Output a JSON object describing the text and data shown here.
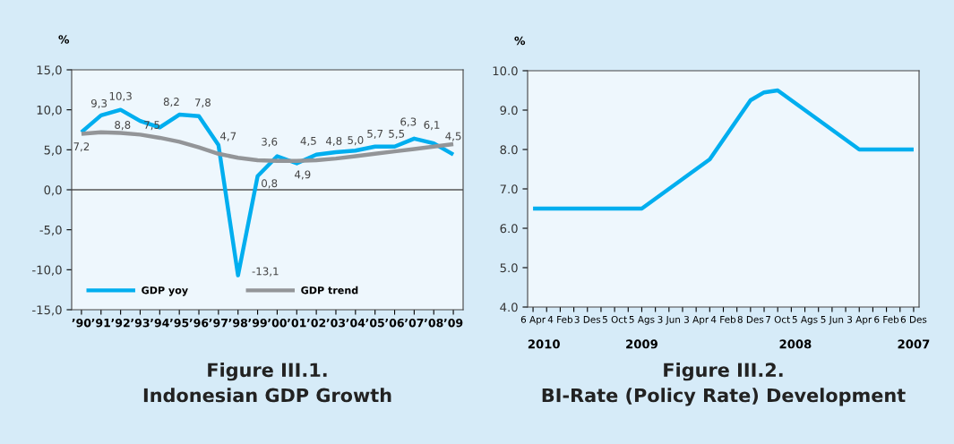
{
  "chart_data": [
    {
      "type": "line",
      "title": "Figure III.1.\nIndonesian GDP Growth",
      "ylabel": "%",
      "categories": [
        "’90",
        "’91",
        "’92",
        "’93",
        "’94",
        "’95",
        "’96",
        "’97",
        "’98",
        "’99",
        "’00",
        "’01",
        "’02",
        "’03",
        "’04",
        "’05",
        "’06",
        "’07",
        "’08",
        "’09"
      ],
      "series": [
        {
          "name": "GDP yoy",
          "color": "#00aeef",
          "values": [
            7.2,
            9.3,
            10.0,
            8.6,
            7.8,
            9.4,
            9.2,
            5.6,
            -10.7,
            1.7,
            4.2,
            3.3,
            4.4,
            4.7,
            4.9,
            5.4,
            5.4,
            6.4,
            5.8,
            4.4
          ]
        },
        {
          "name": "GDP trend",
          "color": "#939598",
          "values": [
            7.0,
            7.2,
            7.1,
            6.9,
            6.5,
            6.0,
            5.3,
            4.5,
            4.0,
            3.7,
            3.6,
            3.6,
            3.7,
            3.9,
            4.2,
            4.5,
            4.8,
            5.1,
            5.4,
            5.7
          ]
        }
      ],
      "ylim": [
        -15,
        15
      ],
      "yticks": [
        {
          "value": -15,
          "label": "-15,0"
        },
        {
          "value": -10,
          "label": "-10,0"
        },
        {
          "value": -5,
          "label": "-5,0"
        },
        {
          "value": 0,
          "label": "0,0"
        },
        {
          "value": 5,
          "label": "5,0"
        },
        {
          "value": 10,
          "label": "10,0"
        },
        {
          "value": 15,
          "label": "15,0"
        }
      ],
      "ref_lines": [
        {
          "axis": "y",
          "value": 0,
          "color": "#555555"
        }
      ],
      "legend": "bottom left",
      "grid": false,
      "annotations": [
        "7,2",
        "9,3",
        "10,3",
        "8,8",
        "7,5",
        "8,2",
        "7,8",
        "4,7",
        "-13,1",
        "0,8",
        "3,6",
        "4,9",
        "4,5",
        "4,8",
        "5,0",
        "5,7",
        "5,5",
        "6,3",
        "6,1",
        "4,5"
      ]
    },
    {
      "type": "line",
      "title": "Figure III.2.\nBI-Rate (Policy Rate) Development",
      "ylabel": "%",
      "categories": [
        "6 Apr",
        null,
        "4 Feb",
        null,
        "3 Des",
        null,
        "5 Oct",
        null,
        "5 Ags",
        null,
        "3 Jun",
        null,
        "3 Apr",
        null,
        "4 Feb",
        null,
        "8 Des",
        null,
        "7 Oct",
        null,
        "5 Ags",
        null,
        "5 Jun",
        null,
        "3 Apr",
        null,
        "6 Feb",
        null,
        "6 Des"
      ],
      "series": [
        {
          "color": "#00aeef",
          "values": [
            6.5,
            6.5,
            6.5,
            6.5,
            6.5,
            6.5,
            6.5,
            6.5,
            6.5,
            6.75,
            7.0,
            7.25,
            7.5,
            7.75,
            8.25,
            8.75,
            9.25,
            9.45,
            9.5,
            9.25,
            9.0,
            8.75,
            8.5,
            8.25,
            8.0,
            8.0,
            8.0,
            8.0,
            8.0
          ]
        }
      ],
      "ylim": [
        4,
        10
      ],
      "yticks": [
        {
          "value": 4,
          "label": "4.0"
        },
        {
          "value": 5,
          "label": "5.0"
        },
        {
          "value": 6,
          "label": "6.0"
        },
        {
          "value": 7,
          "label": "7.0"
        },
        {
          "value": 8,
          "label": "8.0"
        },
        {
          "value": 9,
          "label": "9.0"
        },
        {
          "value": 10,
          "label": "10.0"
        }
      ],
      "legend": false,
      "grid": false,
      "annotations": [
        "2010",
        "2009",
        "2008",
        "2007"
      ]
    }
  ]
}
